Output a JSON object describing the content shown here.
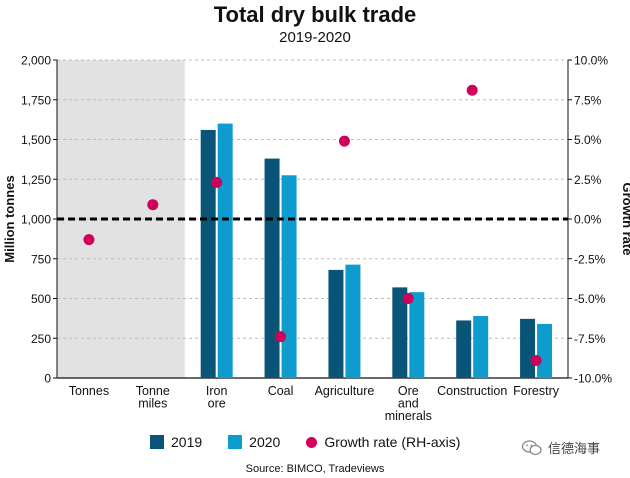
{
  "header": {
    "title": "Total dry bulk trade",
    "subtitle": "2019-2020"
  },
  "footer": {
    "source": "Source: BIMCO, Tradeviews"
  },
  "watermark": {
    "text": "信德海事",
    "icon": "wechat-icon"
  },
  "legend": {
    "s2019": "2019",
    "s2020": "2020",
    "growth": "Growth rate (RH-axis)"
  },
  "colors": {
    "s2019": "#0a5577",
    "s2020": "#0e9ccf",
    "growth": "#d1005b",
    "shade": "#e2e2e2",
    "grid": "#bdbdbd"
  },
  "chart_data": {
    "type": "bar",
    "title": "Total dry bulk trade",
    "subtitle": "2019-2020",
    "categories": [
      [
        "Tonnes"
      ],
      [
        "Tonne",
        "miles"
      ],
      [
        "Iron",
        "ore"
      ],
      [
        "Coal"
      ],
      [
        "Agriculture"
      ],
      [
        "Ore",
        "and",
        "minerals"
      ],
      [
        "Construction"
      ],
      [
        "Forestry"
      ]
    ],
    "series": [
      {
        "name": "2019",
        "values": [
          null,
          null,
          1560,
          1380,
          680,
          570,
          362,
          372
        ]
      },
      {
        "name": "2020",
        "values": [
          null,
          null,
          1600,
          1275,
          713,
          540,
          390,
          340
        ]
      }
    ],
    "growth": {
      "name": "Growth rate (RH-axis)",
      "values": [
        -1.3,
        0.9,
        2.3,
        -7.4,
        4.9,
        -5.0,
        8.1,
        -8.9
      ]
    },
    "ylabel": "Million tonnes",
    "y2label": "Growth rate",
    "ylim": [
      0,
      2000
    ],
    "y_ticks": [
      0,
      250,
      500,
      750,
      1000,
      1250,
      1500,
      1750,
      2000
    ],
    "y_tick_labels": [
      "0",
      "250",
      "500",
      "750",
      "1,000",
      "1,250",
      "1,500",
      "1,750",
      "2,000"
    ],
    "y2lim": [
      -10,
      10
    ],
    "y2_ticks": [
      -10,
      -7.5,
      -5,
      -2.5,
      0,
      2.5,
      5,
      7.5,
      10
    ],
    "y2_tick_labels": [
      "-10.0%",
      "-7.5%",
      "-5.0%",
      "-2.5%",
      "0.0%",
      "2.5%",
      "5.0%",
      "7.5%",
      "10.0%"
    ],
    "zero_line": 0,
    "shaded_categories": [
      0,
      1
    ],
    "grid": true
  }
}
